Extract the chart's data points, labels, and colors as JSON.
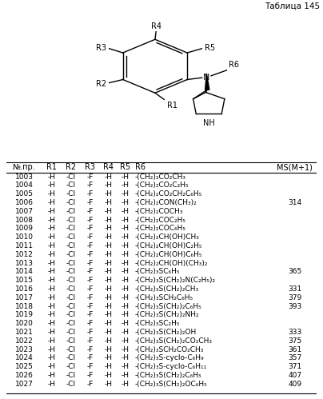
{
  "title": "Таблица 145",
  "headers": [
    "№.пр.",
    "R1",
    "R2",
    "R3",
    "R4",
    "R5",
    "R6",
    "MS(M+1)"
  ],
  "rows": [
    [
      "1003",
      "-H",
      "-Cl",
      "-F",
      "-H",
      "-H",
      "-(CH₂)₂CO₂CH₃",
      ""
    ],
    [
      "1004",
      "-H",
      "-Cl",
      "-F",
      "-H",
      "-H",
      "-(CH₂)₂CO₂C₂H₅",
      ""
    ],
    [
      "1005",
      "-H",
      "-Cl",
      "-F",
      "-H",
      "-H",
      "-(CH₂)₂CO₂CH₂C₆H₅",
      ""
    ],
    [
      "1006",
      "-H",
      "-Cl",
      "-F",
      "-H",
      "-H",
      "-(CH₂)₂CON(CH₃)₂",
      "314"
    ],
    [
      "1007",
      "-H",
      "-Cl",
      "-F",
      "-H",
      "-H",
      "-(CH₂)₂COCH₃",
      ""
    ],
    [
      "1008",
      "-H",
      "-Cl",
      "-F",
      "-H",
      "-H",
      "-(CH₂)₂COC₂H₅",
      ""
    ],
    [
      "1009",
      "-H",
      "-Cl",
      "-F",
      "-H",
      "-H",
      "-(CH₂)₂COC₆H₅",
      ""
    ],
    [
      "1010",
      "-H",
      "-Cl",
      "-F",
      "-H",
      "-H",
      "-(CH₂)₂CH(OH)CH₃",
      ""
    ],
    [
      "1011",
      "-H",
      "-Cl",
      "-F",
      "-H",
      "-H",
      "-(CH₂)₂CH(OH)C₂H₅",
      ""
    ],
    [
      "1012",
      "-H",
      "-Cl",
      "-F",
      "-H",
      "-H",
      "-(CH₂)₂CH(OH)C₆H₅",
      ""
    ],
    [
      "1013",
      "-H",
      "-Cl",
      "-F",
      "-H",
      "-H",
      "-(CH₂)₂CH(OH)(CH₃)₂",
      ""
    ],
    [
      "1014",
      "-H",
      "-Cl",
      "-F",
      "-H",
      "-H",
      "-(CH₂)₃SC₆H₅",
      "365"
    ],
    [
      "1015",
      "-H",
      "-Cl",
      "-F",
      "-H",
      "-H",
      "-(CH₂)₃S(CH₂)₂N(C₂H₅)₂",
      ""
    ],
    [
      "1016",
      "-H",
      "-Cl",
      "-F",
      "-H",
      "-H",
      "-(CH₂)₃S(CH₂)₂CH₃",
      "331"
    ],
    [
      "1017",
      "-H",
      "-Cl",
      "-F",
      "-H",
      "-H",
      "-(CH₂)₃SCH₂C₆H₅",
      "379"
    ],
    [
      "1018",
      "-H",
      "-Cl",
      "-F",
      "-H",
      "-H",
      "-(CH₂)₃S(CH₂)₂C₆H₅",
      "393"
    ],
    [
      "1019",
      "-H",
      "-Cl",
      "-F",
      "-H",
      "-H",
      "-(CH₂)₃S(CH₂)₂NH₂",
      ""
    ],
    [
      "1020",
      "-H",
      "-Cl",
      "-F",
      "-H",
      "-H",
      "-(CH₂)₃SC₂H₅",
      ""
    ],
    [
      "1021",
      "-H",
      "-Cl",
      "-F",
      "-H",
      "-H",
      "-(CH₂)₃S(CH₂)₂OH",
      "333"
    ],
    [
      "1022",
      "-H",
      "-Cl",
      "-F",
      "-H",
      "-H",
      "-(CH₂)₃S(CH₂)₂CO₂CH₃",
      "375"
    ],
    [
      "1023",
      "-H",
      "-Cl",
      "-F",
      "-H",
      "-H",
      "-(CH₂)₃SCH₂CO₂CH₃",
      "361"
    ],
    [
      "1024",
      "-H",
      "-Cl",
      "-F",
      "-H",
      "-H",
      "-(CH₂)₃S-cyclo-C₆H₉",
      "357"
    ],
    [
      "1025",
      "-H",
      "-Cl",
      "-F",
      "-H",
      "-H",
      "-(CH₂)₃S-cyclo-C₆H₁₁",
      "371"
    ],
    [
      "1026",
      "-H",
      "-Cl",
      "-F",
      "-H",
      "-H",
      "-(CH₂)₃S(CH₂)₂C₆H₅",
      "407"
    ],
    [
      "1027",
      "-H",
      "-Cl",
      "-F",
      "-H",
      "-H",
      "-(CH₂)₃S(CH₂)₂OC₆H₅",
      "409"
    ]
  ],
  "bg_color": "#ffffff",
  "text_color": "#000000",
  "font_size": 6.5,
  "header_font_size": 7.0,
  "title_fontsize": 7.5
}
